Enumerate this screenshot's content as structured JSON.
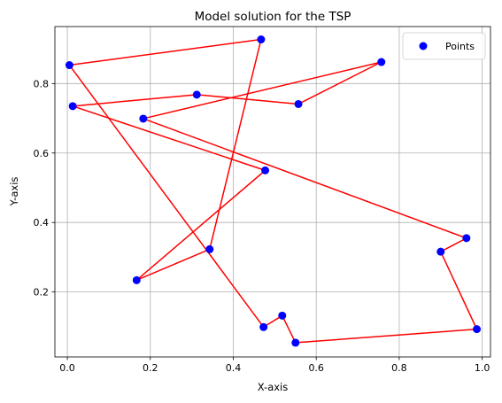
{
  "chart_data": {
    "type": "scatter",
    "title": "Model solution for the TSP",
    "xlabel": "X-axis",
    "ylabel": "Y-axis",
    "xlim": [
      -0.03,
      1.02
    ],
    "ylim": [
      0.013,
      0.964
    ],
    "xticks": [
      0.0,
      0.2,
      0.4,
      0.6,
      0.8,
      1.0
    ],
    "xtick_labels": [
      "0.0",
      "0.2",
      "0.4",
      "0.6",
      "0.8",
      "1.0"
    ],
    "yticks": [
      0.2,
      0.4,
      0.6,
      0.8
    ],
    "ytick_labels": [
      "0.2",
      "0.4",
      "0.6",
      "0.8"
    ],
    "grid": true,
    "legend": {
      "placement": "top-right",
      "entries": [
        "Points"
      ]
    },
    "series": [
      {
        "name": "Points",
        "kind": "scatter",
        "color": "#0000ff",
        "points": [
          {
            "x": 0.005,
            "y": 0.853
          },
          {
            "x": 0.467,
            "y": 0.927
          },
          {
            "x": 0.757,
            "y": 0.862
          },
          {
            "x": 0.013,
            "y": 0.735
          },
          {
            "x": 0.312,
            "y": 0.768
          },
          {
            "x": 0.557,
            "y": 0.741
          },
          {
            "x": 0.183,
            "y": 0.699
          },
          {
            "x": 0.477,
            "y": 0.55
          },
          {
            "x": 0.962,
            "y": 0.355
          },
          {
            "x": 0.9,
            "y": 0.316
          },
          {
            "x": 0.343,
            "y": 0.323
          },
          {
            "x": 0.167,
            "y": 0.234
          },
          {
            "x": 0.518,
            "y": 0.132
          },
          {
            "x": 0.473,
            "y": 0.099
          },
          {
            "x": 0.987,
            "y": 0.093
          },
          {
            "x": 0.55,
            "y": 0.054
          }
        ]
      },
      {
        "kind": "route",
        "color": "#ff0000",
        "points": [
          {
            "x": 0.005,
            "y": 0.853
          },
          {
            "x": 0.467,
            "y": 0.927
          },
          {
            "x": 0.343,
            "y": 0.323
          },
          {
            "x": 0.167,
            "y": 0.234
          },
          {
            "x": 0.477,
            "y": 0.55
          },
          {
            "x": 0.013,
            "y": 0.735
          },
          {
            "x": 0.312,
            "y": 0.768
          },
          {
            "x": 0.557,
            "y": 0.741
          },
          {
            "x": 0.757,
            "y": 0.862
          },
          {
            "x": 0.183,
            "y": 0.699
          },
          {
            "x": 0.962,
            "y": 0.355
          },
          {
            "x": 0.9,
            "y": 0.316
          },
          {
            "x": 0.987,
            "y": 0.093
          },
          {
            "x": 0.55,
            "y": 0.054
          },
          {
            "x": 0.518,
            "y": 0.132
          },
          {
            "x": 0.473,
            "y": 0.099
          },
          {
            "x": 0.005,
            "y": 0.853
          }
        ]
      }
    ]
  }
}
